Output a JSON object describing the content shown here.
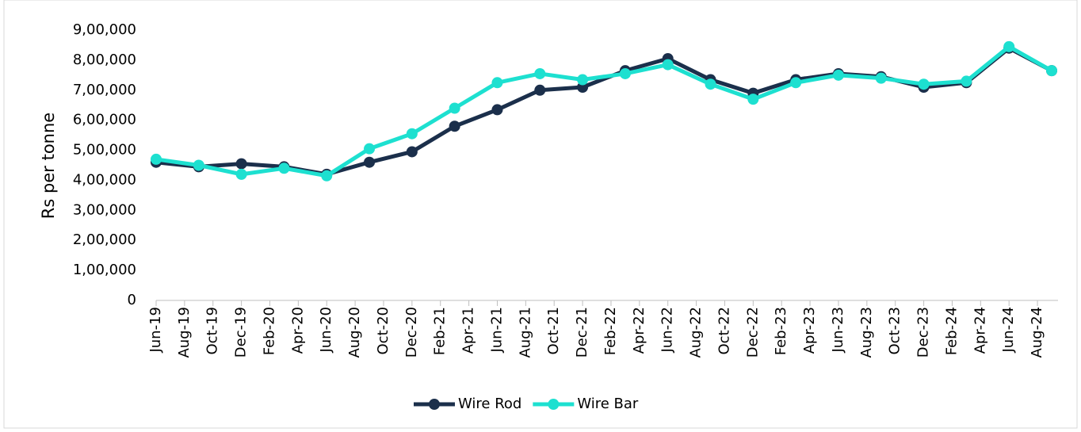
{
  "chart_data": {
    "type": "line",
    "y_label": "Rs per tonne",
    "x": [
      "Jun-19",
      "Sep-19",
      "Dec-19",
      "Mar-20",
      "Jun-20",
      "Sep-20",
      "Dec-20",
      "Mar-21",
      "Jun-21",
      "Sep-21",
      "Dec-21",
      "Mar-22",
      "Jun-22",
      "Sep-22",
      "Dec-22",
      "Mar-23",
      "Jun-23",
      "Sep-23",
      "Dec-23",
      "Mar-24",
      "Jun-24",
      "Sep-24"
    ],
    "series": [
      {
        "name": "Wire Rod",
        "color": "#1b2f4b",
        "values": [
          460000,
          445000,
          455000,
          445000,
          420000,
          460000,
          495000,
          580000,
          635000,
          700000,
          710000,
          765000,
          805000,
          735000,
          690000,
          735000,
          755000,
          745000,
          710000,
          725000,
          840000,
          765000
        ]
      },
      {
        "name": "Wire Bar",
        "color": "#1de0d0",
        "values": [
          470000,
          450000,
          420000,
          440000,
          415000,
          505000,
          555000,
          640000,
          725000,
          755000,
          735000,
          755000,
          785000,
          720000,
          670000,
          725000,
          750000,
          740000,
          720000,
          730000,
          845000,
          765000
        ]
      }
    ],
    "xlim": [
      "Jun-19",
      "Sep-24"
    ],
    "xticks": [
      "Jun-19",
      "Aug-19",
      "Oct-19",
      "Dec-19",
      "Feb-20",
      "Apr-20",
      "Jun-20",
      "Aug-20",
      "Oct-20",
      "Dec-20",
      "Feb-21",
      "Apr-21",
      "Jun-21",
      "Aug-21",
      "Oct-21",
      "Dec-21",
      "Feb-22",
      "Apr-22",
      "Jun-22",
      "Aug-22",
      "Oct-22",
      "Dec-22",
      "Feb-23",
      "Apr-23",
      "Jun-23",
      "Aug-23",
      "Oct-23",
      "Dec-23",
      "Feb-24",
      "Apr-24",
      "Jun-24",
      "Aug-24"
    ],
    "ylim": [
      0,
      900000
    ],
    "yticks": [
      0,
      {
        "value": 100000,
        "label": "1,00,000"
      },
      {
        "value": 200000,
        "label": "2,00,000"
      },
      {
        "value": 300000,
        "label": "3,00,000"
      },
      {
        "value": 400000,
        "label": "4,00,000"
      },
      {
        "value": 500000,
        "label": "5,00,000"
      },
      {
        "value": 600000,
        "label": "6,00,000"
      },
      {
        "value": 700000,
        "label": "7,00,000"
      },
      {
        "value": 800000,
        "label": "8,00,000"
      },
      {
        "value": 900000,
        "label": "9,00,000"
      }
    ],
    "grid": false,
    "legend": "bottom"
  }
}
